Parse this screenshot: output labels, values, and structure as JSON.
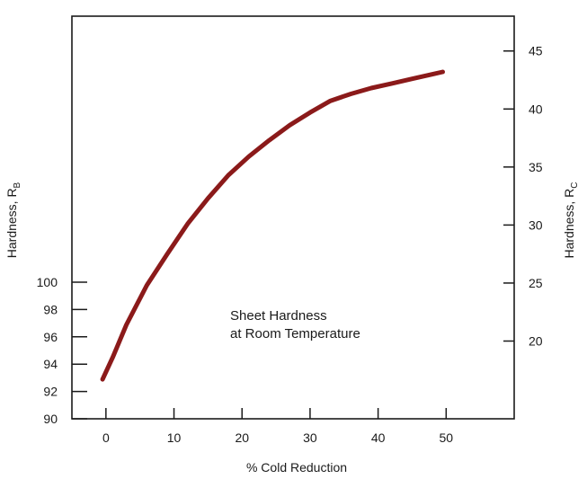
{
  "chart_data": {
    "type": "line",
    "title": "",
    "xlabel": "% Cold Reduction",
    "ylabel_left": "Hardness, R",
    "ylabel_left_subscript": "B",
    "ylabel_right": "Hardness, R",
    "ylabel_right_subscript": "C",
    "annotation_line1": "Sheet Hardness",
    "annotation_line2": "at Room Temperature",
    "xlim": [
      -5,
      60
    ],
    "x_ticks": [
      0,
      10,
      20,
      30,
      40,
      50
    ],
    "left_ylim": [
      90,
      100
    ],
    "left_y_ticks": [
      90,
      92,
      94,
      96,
      98,
      100
    ],
    "right_ylim": [
      13.3,
      48
    ],
    "right_y_ticks": [
      20,
      25,
      30,
      35,
      40,
      45
    ],
    "series": [
      {
        "color": "#8b1a1a",
        "x": [
          -0.5,
          1,
          3,
          6,
          9,
          12,
          15,
          18,
          21,
          24,
          27,
          30,
          33,
          36,
          39,
          42,
          45,
          48,
          49.5
        ],
        "y_rc": [
          16.7,
          18.6,
          21.4,
          24.8,
          27.5,
          30.1,
          32.3,
          34.3,
          35.9,
          37.3,
          38.6,
          39.7,
          40.7,
          41.3,
          41.8,
          42.2,
          42.6,
          43.0,
          43.2
        ]
      }
    ],
    "grid": false,
    "legend": "none"
  }
}
